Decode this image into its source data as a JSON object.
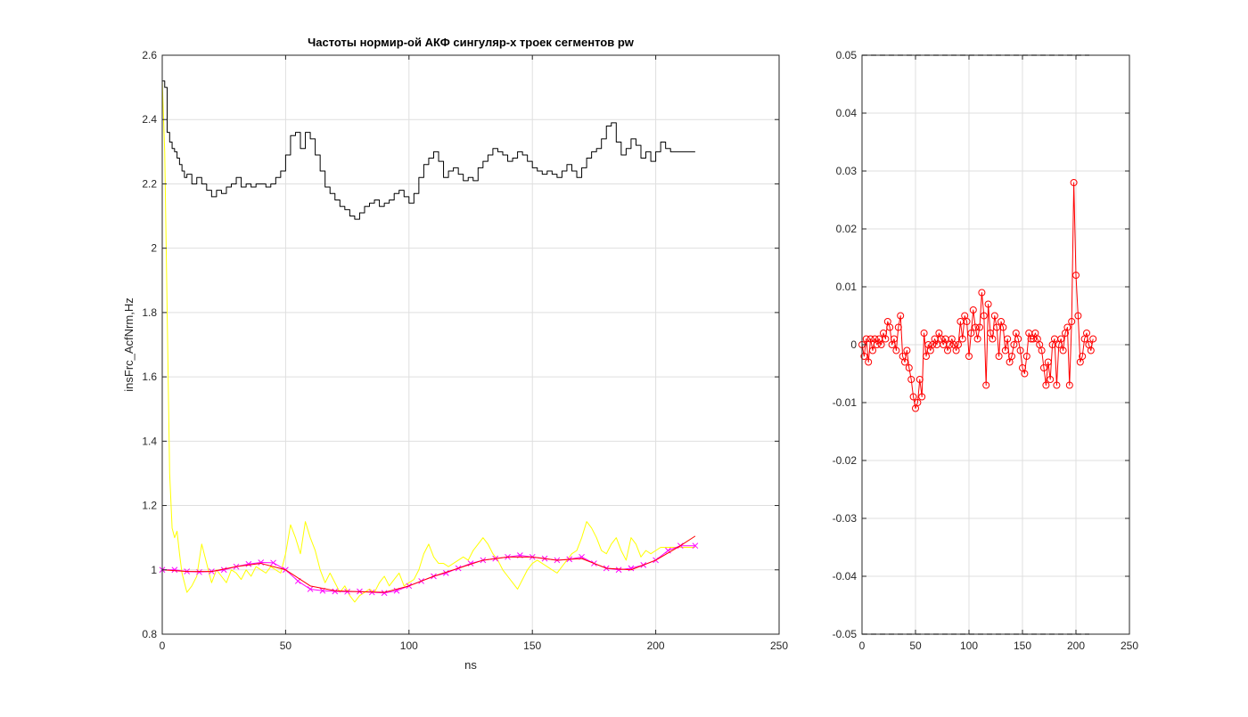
{
  "figure": {
    "background": "#ffffff"
  },
  "chart_data": [
    {
      "type": "line",
      "title": "Частоты нормир-ой АКФ сингуляр-х троек сегментов pw",
      "xlabel": "ns",
      "ylabel": "insFrc_AcfNrm,Hz",
      "xlim": [
        0,
        250
      ],
      "ylim": [
        0.8,
        2.6
      ],
      "xticks": [
        0,
        50,
        100,
        150,
        200,
        250
      ],
      "yticks": [
        0.8,
        1,
        1.2,
        1.4,
        1.6,
        1.8,
        2,
        2.2,
        2.4,
        2.6
      ],
      "xtick_labels": [
        "0",
        "50",
        "100",
        "150",
        "200",
        "250"
      ],
      "ytick_labels": [
        "0.8",
        "1",
        "1.2",
        "1.4",
        "1.6",
        "1.8",
        "2",
        "2.2",
        "2.4",
        "2.6"
      ],
      "grid": true,
      "series": [
        {
          "color": "#000000",
          "style": "stairs",
          "x": [
            0,
            1,
            2,
            3,
            4,
            5,
            6,
            7,
            8,
            9,
            10,
            12,
            14,
            16,
            18,
            20,
            22,
            24,
            26,
            28,
            30,
            32,
            34,
            36,
            38,
            40,
            42,
            44,
            46,
            48,
            50,
            52,
            54,
            56,
            58,
            60,
            62,
            64,
            66,
            68,
            70,
            72,
            74,
            76,
            78,
            80,
            82,
            84,
            86,
            88,
            90,
            92,
            94,
            96,
            98,
            100,
            102,
            104,
            106,
            108,
            110,
            112,
            114,
            116,
            118,
            120,
            122,
            124,
            126,
            128,
            130,
            132,
            134,
            136,
            138,
            140,
            142,
            144,
            146,
            148,
            150,
            152,
            154,
            156,
            158,
            160,
            162,
            164,
            166,
            168,
            170,
            172,
            174,
            176,
            178,
            180,
            182,
            184,
            186,
            188,
            190,
            192,
            194,
            196,
            198,
            200,
            202,
            204,
            206,
            208,
            210,
            212,
            214,
            216
          ],
          "y": [
            2.52,
            2.5,
            2.36,
            2.33,
            2.31,
            2.3,
            2.28,
            2.26,
            2.24,
            2.22,
            2.23,
            2.2,
            2.22,
            2.2,
            2.18,
            2.16,
            2.18,
            2.17,
            2.19,
            2.2,
            2.22,
            2.19,
            2.2,
            2.19,
            2.2,
            2.2,
            2.19,
            2.2,
            2.22,
            2.24,
            2.29,
            2.35,
            2.36,
            2.31,
            2.36,
            2.34,
            2.29,
            2.24,
            2.19,
            2.17,
            2.15,
            2.13,
            2.12,
            2.1,
            2.09,
            2.11,
            2.13,
            2.14,
            2.15,
            2.13,
            2.14,
            2.15,
            2.17,
            2.18,
            2.16,
            2.14,
            2.17,
            2.22,
            2.26,
            2.28,
            2.3,
            2.27,
            2.22,
            2.24,
            2.25,
            2.23,
            2.21,
            2.22,
            2.21,
            2.25,
            2.27,
            2.29,
            2.31,
            2.3,
            2.29,
            2.27,
            2.28,
            2.3,
            2.29,
            2.27,
            2.25,
            2.24,
            2.23,
            2.24,
            2.23,
            2.22,
            2.24,
            2.26,
            2.24,
            2.22,
            2.25,
            2.28,
            2.3,
            2.31,
            2.34,
            2.38,
            2.39,
            2.33,
            2.29,
            2.31,
            2.34,
            2.32,
            2.28,
            2.3,
            2.27,
            2.3,
            2.33,
            2.31,
            2.3,
            2.3,
            2.3,
            2.3,
            2.3,
            2.3
          ]
        },
        {
          "color": "#ffff00",
          "x": [
            0,
            1,
            2,
            3,
            4,
            5,
            6,
            7,
            8,
            9,
            10,
            12,
            14,
            16,
            18,
            20,
            22,
            24,
            26,
            28,
            30,
            32,
            34,
            36,
            38,
            40,
            42,
            44,
            46,
            48,
            50,
            52,
            54,
            56,
            58,
            60,
            62,
            64,
            66,
            68,
            70,
            72,
            74,
            76,
            78,
            80,
            82,
            84,
            86,
            88,
            90,
            92,
            94,
            96,
            98,
            100,
            102,
            104,
            106,
            108,
            110,
            112,
            114,
            116,
            118,
            120,
            122,
            124,
            126,
            128,
            130,
            132,
            134,
            136,
            138,
            140,
            142,
            144,
            146,
            148,
            150,
            152,
            154,
            156,
            158,
            160,
            162,
            164,
            166,
            168,
            170,
            172,
            174,
            176,
            178,
            180,
            182,
            184,
            186,
            188,
            190,
            192,
            194,
            196,
            198,
            200,
            202,
            204,
            206,
            208,
            210,
            212,
            214,
            216
          ],
          "y": [
            2.52,
            2.3,
            1.8,
            1.3,
            1.13,
            1.1,
            1.12,
            1.05,
            0.99,
            0.96,
            0.93,
            0.95,
            0.98,
            1.08,
            1.02,
            0.96,
            1.0,
            0.98,
            0.96,
            1.0,
            0.99,
            0.97,
            1.0,
            0.98,
            1.01,
            1.0,
            0.99,
            1.01,
            1.0,
            0.99,
            1.05,
            1.14,
            1.1,
            1.05,
            1.15,
            1.1,
            1.06,
            1.0,
            0.96,
            0.99,
            0.96,
            0.93,
            0.95,
            0.92,
            0.9,
            0.92,
            0.93,
            0.94,
            0.93,
            0.96,
            0.98,
            0.95,
            0.97,
            0.99,
            0.95,
            0.96,
            0.97,
            1.0,
            1.05,
            1.08,
            1.04,
            1.02,
            1.02,
            1.01,
            1.02,
            1.03,
            1.04,
            1.03,
            1.06,
            1.08,
            1.1,
            1.08,
            1.05,
            1.03,
            1.0,
            0.98,
            0.96,
            0.94,
            0.97,
            1.0,
            1.02,
            1.03,
            1.02,
            1.01,
            1.0,
            0.99,
            1.01,
            1.03,
            1.05,
            1.06,
            1.1,
            1.15,
            1.13,
            1.1,
            1.06,
            1.05,
            1.08,
            1.1,
            1.06,
            1.03,
            1.1,
            1.08,
            1.04,
            1.06,
            1.05,
            1.06,
            1.07,
            1.07,
            1.07,
            1.07,
            1.07,
            1.07,
            1.07,
            1.07
          ]
        },
        {
          "color": "#ff00ff",
          "marker": "x",
          "x": [
            0,
            5,
            10,
            15,
            20,
            25,
            30,
            35,
            40,
            45,
            50,
            55,
            60,
            65,
            70,
            75,
            80,
            85,
            90,
            95,
            100,
            105,
            110,
            115,
            120,
            125,
            130,
            135,
            140,
            145,
            150,
            155,
            160,
            165,
            170,
            175,
            180,
            185,
            190,
            195,
            200,
            205,
            210,
            216
          ],
          "y": [
            1.0,
            1.0,
            0.995,
            0.993,
            0.995,
            1.0,
            1.01,
            1.018,
            1.023,
            1.022,
            1.0,
            0.965,
            0.94,
            0.935,
            0.933,
            0.932,
            0.933,
            0.93,
            0.928,
            0.935,
            0.95,
            0.965,
            0.98,
            0.99,
            1.005,
            1.02,
            1.03,
            1.035,
            1.04,
            1.045,
            1.04,
            1.035,
            1.03,
            1.033,
            1.04,
            1.02,
            1.005,
            1.0,
            1.005,
            1.015,
            1.03,
            1.06,
            1.075,
            1.075
          ]
        },
        {
          "color": "#ff0000",
          "x": [
            0,
            10,
            20,
            30,
            40,
            50,
            60,
            70,
            80,
            90,
            100,
            110,
            120,
            130,
            140,
            150,
            160,
            170,
            180,
            190,
            200,
            210,
            216
          ],
          "y": [
            1.0,
            0.995,
            0.995,
            1.01,
            1.02,
            1.0,
            0.95,
            0.935,
            0.932,
            0.93,
            0.95,
            0.98,
            1.005,
            1.03,
            1.04,
            1.04,
            1.03,
            1.035,
            1.005,
            1.0,
            1.03,
            1.075,
            1.105
          ]
        }
      ]
    },
    {
      "type": "line",
      "title": "",
      "xlabel": "",
      "ylabel": "",
      "xlim": [
        0,
        250
      ],
      "ylim": [
        -0.05,
        0.05
      ],
      "xticks": [
        0,
        50,
        100,
        150,
        200,
        250
      ],
      "yticks": [
        -0.05,
        -0.04,
        -0.03,
        -0.02,
        -0.01,
        0,
        0.01,
        0.02,
        0.03,
        0.04,
        0.05
      ],
      "xtick_labels": [
        "0",
        "50",
        "100",
        "150",
        "200",
        "250"
      ],
      "ytick_labels": [
        "-0.05",
        "-0.04",
        "-0.03",
        "-0.02",
        "-0.01",
        "0",
        "0.01",
        "0.02",
        "0.03",
        "0.04",
        "0.05"
      ],
      "grid": true,
      "dashed_limits": [
        0.05,
        -0.05
      ],
      "series": [
        {
          "color": "#ff0000",
          "marker": "o",
          "x": [
            0,
            2,
            4,
            6,
            8,
            10,
            12,
            14,
            16,
            18,
            20,
            22,
            24,
            26,
            28,
            30,
            32,
            34,
            36,
            38,
            40,
            42,
            44,
            46,
            48,
            50,
            52,
            54,
            56,
            58,
            60,
            62,
            64,
            66,
            68,
            70,
            72,
            74,
            76,
            78,
            80,
            82,
            84,
            86,
            88,
            90,
            92,
            94,
            96,
            98,
            100,
            102,
            104,
            106,
            108,
            110,
            112,
            114,
            116,
            118,
            120,
            122,
            124,
            126,
            128,
            130,
            132,
            134,
            136,
            138,
            140,
            142,
            144,
            146,
            148,
            150,
            152,
            154,
            156,
            158,
            160,
            162,
            164,
            166,
            168,
            170,
            172,
            174,
            176,
            178,
            180,
            182,
            184,
            186,
            188,
            190,
            192,
            194,
            196,
            198,
            200,
            202,
            204,
            206,
            208,
            210,
            212,
            214,
            216
          ],
          "y": [
            0.0,
            -0.002,
            0.001,
            -0.003,
            0.001,
            -0.001,
            0.001,
            0.0,
            0.001,
            0.0,
            0.002,
            0.001,
            0.004,
            0.003,
            0.0,
            0.001,
            -0.001,
            0.003,
            0.005,
            -0.002,
            -0.003,
            -0.001,
            -0.004,
            -0.006,
            -0.009,
            -0.011,
            -0.01,
            -0.006,
            -0.009,
            0.002,
            -0.002,
            0.0,
            -0.001,
            0.0,
            0.001,
            0.0,
            0.002,
            0.001,
            0.0,
            0.001,
            -0.001,
            0.0,
            0.001,
            0.0,
            -0.001,
            0.0,
            0.004,
            0.001,
            0.005,
            0.004,
            -0.002,
            0.002,
            0.006,
            0.003,
            0.001,
            0.003,
            0.009,
            0.005,
            -0.007,
            0.007,
            0.002,
            0.001,
            0.005,
            0.003,
            -0.002,
            0.004,
            0.003,
            -0.001,
            0.001,
            -0.003,
            -0.002,
            0.0,
            0.002,
            0.001,
            -0.001,
            -0.004,
            -0.005,
            -0.002,
            0.002,
            0.001,
            0.001,
            0.002,
            0.001,
            0.0,
            -0.001,
            -0.004,
            -0.007,
            -0.003,
            -0.006,
            0.0,
            0.001,
            -0.007,
            0.0,
            0.001,
            -0.001,
            0.002,
            0.003,
            -0.007,
            0.004,
            0.028,
            0.012,
            0.005,
            -0.003,
            -0.002,
            0.001,
            0.002,
            0.0,
            -0.001,
            0.001
          ]
        }
      ]
    }
  ]
}
